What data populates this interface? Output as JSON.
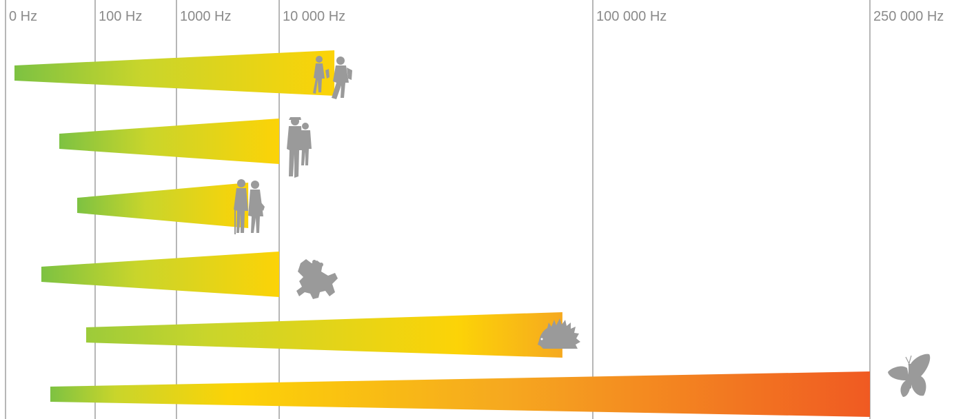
{
  "chart_data": {
    "type": "bar",
    "variant": "tapered horizontal range bars on a frequency axis (piecewise scale)",
    "x_unit": "Hz",
    "ticks": [
      {
        "value": 0,
        "label": "0 Hz"
      },
      {
        "value": 100,
        "label": "100 Hz"
      },
      {
        "value": 1000,
        "label": "1000 Hz"
      },
      {
        "value": 10000,
        "label": "10 000 Hz"
      },
      {
        "value": 100000,
        "label": "100 000 Hz"
      },
      {
        "value": 250000,
        "label": "250 000 Hz"
      }
    ],
    "grid": true,
    "legend": "none (each range identified by a pictogram at its right end)",
    "series": [
      {
        "icon": "children-icon",
        "from": 10,
        "to": 15000
      },
      {
        "icon": "adults-icon",
        "from": 60,
        "to": 10000
      },
      {
        "icon": "elderly-couple-icon",
        "from": 80,
        "to": 5000
      },
      {
        "icon": "frog-icon",
        "from": 40,
        "to": 10000
      },
      {
        "icon": "hedgehog-icon",
        "from": 90,
        "to": 80000
      },
      {
        "icon": "butterfly-icon",
        "from": 50,
        "to": 250000
      }
    ],
    "colors": {
      "green": "#7dc242",
      "yellow-green": "#cbd62a",
      "yellow": "#fcd307",
      "orange": "#f6a91f",
      "red-orange": "#f05a22",
      "gridline": "#9e9e9e",
      "tick_text": "#8a8a8a",
      "icon": "#9a9a9a"
    }
  }
}
